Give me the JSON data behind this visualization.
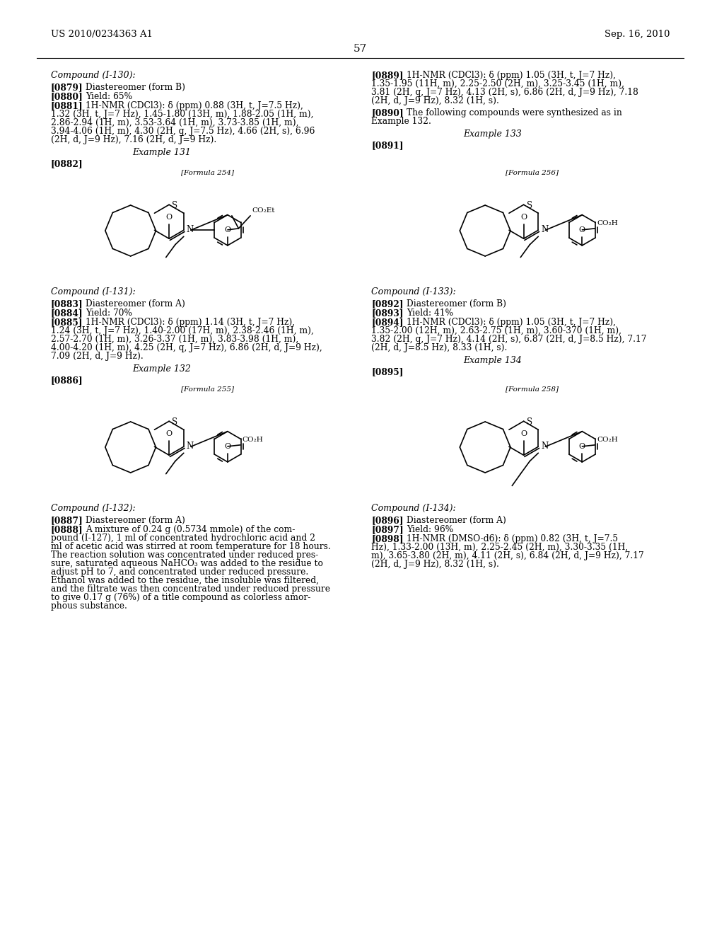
{
  "header_left": "US 2010/0234363 A1",
  "header_right": "Sep. 16, 2010",
  "page_number": "57",
  "bg_color": "white"
}
